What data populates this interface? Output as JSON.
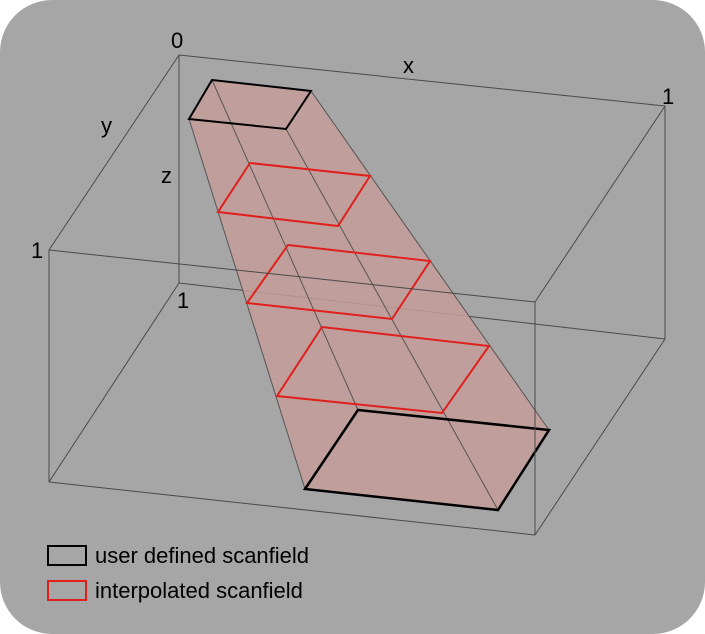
{
  "axes": {
    "origin_label": "0",
    "x_label": "x",
    "x_end_label": "1",
    "y_label": "y",
    "y_end_label": "1",
    "z_label": "z",
    "z_end_label": "1"
  },
  "legend": {
    "items": [
      {
        "label": "user defined scanfield",
        "color": "#000000"
      },
      {
        "label": "interpolated scanfield",
        "color": "#e0201c"
      }
    ]
  },
  "colors": {
    "background": "#a6a6a6",
    "tube_fill": "#c49c99",
    "user_defined": "#000000",
    "interpolated": "#e0201c"
  }
}
